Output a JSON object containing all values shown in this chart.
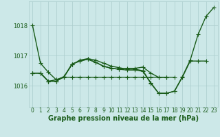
{
  "title": "Graphe pression niveau de la mer (hPa)",
  "yticks": [
    1016,
    1017,
    1018
  ],
  "ylim": [
    1015.3,
    1018.8
  ],
  "xlim": [
    -0.5,
    23.5
  ],
  "background_color": "#cce8e8",
  "grid_color": "#aacccc",
  "line_color": "#1a5c1a",
  "lines": [
    [
      1018.0,
      1016.75,
      1016.45,
      1016.2,
      1016.3,
      1016.7,
      1016.85,
      1016.9,
      1016.85,
      1016.75,
      1016.65,
      1016.6,
      1016.55,
      1016.55,
      1016.5,
      1016.1,
      1015.75,
      1015.75,
      1015.82,
      1016.3,
      1016.85,
      1017.7,
      1018.3,
      1018.6
    ],
    [
      1016.42,
      1016.42,
      1016.15,
      1016.15,
      1016.3,
      1016.72,
      1016.82,
      1016.88,
      1016.78,
      1016.65,
      1016.58,
      1016.55,
      1016.52,
      1016.52,
      1016.48,
      1016.08,
      1015.75,
      1015.75,
      1015.82,
      1016.28,
      1016.82,
      1016.82,
      1016.82,
      null
    ],
    [
      1016.42,
      1016.42,
      1016.15,
      1016.15,
      1016.3,
      1016.72,
      1016.82,
      1016.88,
      1016.78,
      1016.65,
      1016.58,
      1016.55,
      1016.58,
      1016.58,
      1016.62,
      1016.42,
      1016.28,
      1016.28,
      1016.28,
      null,
      null,
      null,
      null,
      null
    ],
    [
      1016.42,
      1016.42,
      1016.15,
      1016.2,
      1016.28,
      1016.28,
      1016.28,
      1016.28,
      1016.28,
      1016.28,
      1016.28,
      1016.28,
      1016.28,
      1016.28,
      1016.28,
      1016.28,
      1016.28,
      1016.28,
      null,
      null,
      null,
      null,
      null,
      null
    ]
  ],
  "marker": "+",
  "marker_size": 4,
  "line_width": 1.0,
  "font_color": "#1a5c1a",
  "font_size_label": 7.0,
  "font_size_tick": 6.0,
  "tick_labels": [
    "0",
    "1",
    "2",
    "3",
    "4",
    "5",
    "6",
    "7",
    "8",
    "9",
    "10",
    "11",
    "12",
    "13",
    "14",
    "15",
    "16",
    "17",
    "18",
    "19",
    "20",
    "21",
    "22",
    "23"
  ]
}
